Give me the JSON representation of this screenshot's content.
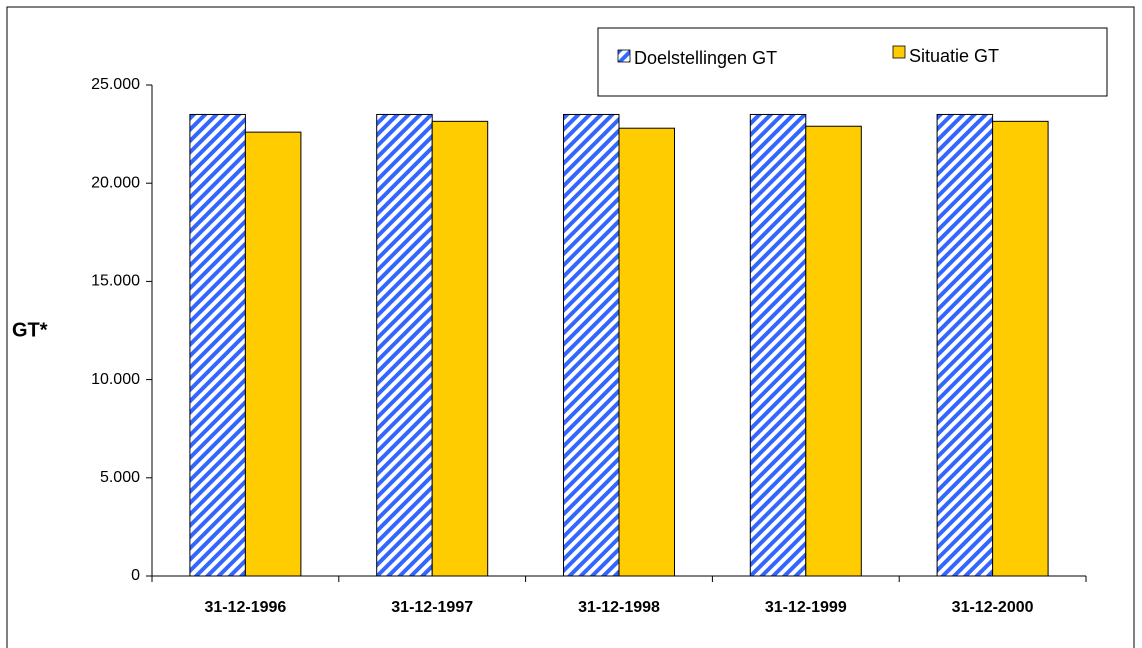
{
  "chart_data": {
    "type": "bar",
    "y_label": "GT*",
    "categories": [
      "31-12-1996",
      "31-12-1997",
      "31-12-1998",
      "31-12-1999",
      "31-12-2000"
    ],
    "series": [
      {
        "name": "Doelstellingen GT",
        "color": "#3366ff",
        "pattern": "hatch",
        "values": [
          23500,
          23500,
          23500,
          23500,
          23500
        ]
      },
      {
        "name": "Situatie GT",
        "color": "#ffcc00",
        "pattern": "solid",
        "values": [
          22600,
          23150,
          22800,
          22900,
          23150
        ]
      }
    ],
    "ylim": [
      0,
      25000
    ],
    "yticks": [
      0,
      {
        "value": 5000,
        "label": "5.000"
      },
      {
        "value": 10000,
        "label": "10.000"
      },
      {
        "value": 15000,
        "label": "15.000"
      },
      {
        "value": 20000,
        "label": "20.000"
      },
      {
        "value": 25000,
        "label": "25.000"
      }
    ],
    "legend": "top-right",
    "grid": false
  }
}
